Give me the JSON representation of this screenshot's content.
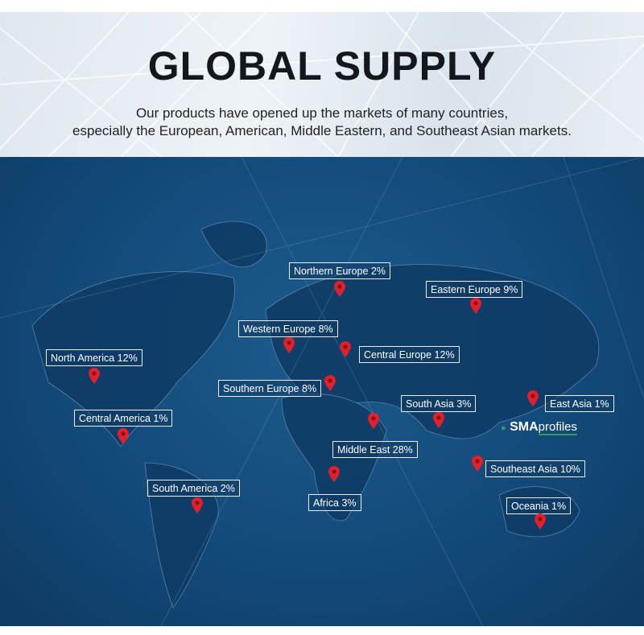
{
  "header": {
    "title": "GLOBAL SUPPLY",
    "subtitle_line1": "Our products have opened up the markets of many countries,",
    "subtitle_line2": "especially the European, American, Middle Eastern, and Southeast Asian markets."
  },
  "colors": {
    "map_bg": "#134a7a",
    "pin": "#e0202a",
    "label_border": "#e8f0f6",
    "logo_accent": "#3a9a5c"
  },
  "regions": [
    {
      "label": "Northern Europe 2%"
    },
    {
      "label": "Eastern Europe 9%"
    },
    {
      "label": "Western Europe 8%"
    },
    {
      "label": "Central Europe 12%"
    },
    {
      "label": "North America 12%"
    },
    {
      "label": "Southern Europe 8%"
    },
    {
      "label": "South Asia 3%"
    },
    {
      "label": "East Asia 1%"
    },
    {
      "label": "Central America 1%"
    },
    {
      "label": "Middle East 28%"
    },
    {
      "label": "Southeast Asia 10%"
    },
    {
      "label": "South America 2%"
    },
    {
      "label": "Africa 3%"
    },
    {
      "label": "Oceania 1%"
    }
  ],
  "watermark": {
    "bold": "SMA",
    "rest": "profiles"
  }
}
